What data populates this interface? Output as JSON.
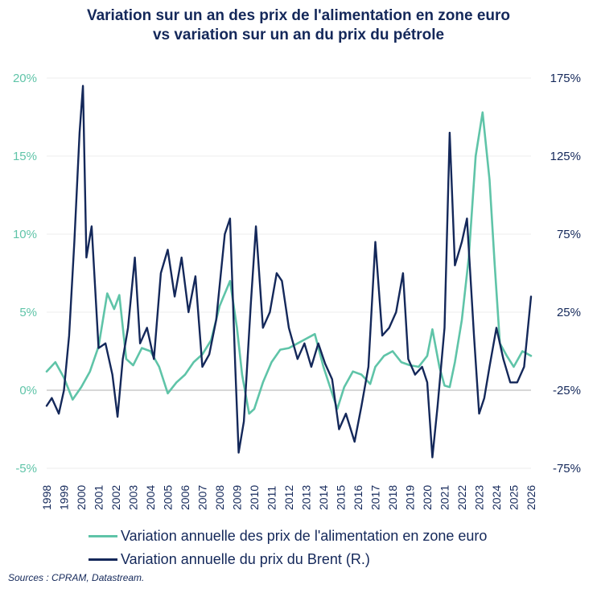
{
  "title_line1": "Variation sur un an des prix de l'alimentation en zone euro",
  "title_line2": "vs variation sur un an du prix du pétrole",
  "source": "Sources : CPRAM, Datastream.",
  "colors": {
    "food": "#5fc4a8",
    "oil": "#14285a",
    "zero": "#bfbfbf",
    "grid": "#ececec"
  },
  "chart_data": {
    "type": "line",
    "title": "Variation sur un an des prix de l'alimentation en zone euro vs variation sur un an du prix du pétrole",
    "legend_position": "bottom",
    "grid": "horizontal",
    "x_ticks": [
      "1998",
      "1999",
      "2000",
      "2001",
      "2002",
      "2003",
      "2004",
      "2005",
      "2006",
      "2007",
      "2008",
      "2009",
      "2010",
      "2011",
      "2012",
      "2013",
      "2014",
      "2015",
      "2016",
      "2017",
      "2018",
      "2019",
      "2020",
      "2021",
      "2022",
      "2023",
      "2024",
      "2025",
      "2026"
    ],
    "y_left": {
      "ticks": [
        "20%",
        "15%",
        "10%",
        "5%",
        "0%",
        "-5%"
      ],
      "values": [
        20,
        15,
        10,
        5,
        0,
        -5
      ],
      "ylim": [
        -5,
        20
      ],
      "unit": "%"
    },
    "y_right": {
      "ticks": [
        "175%",
        "125%",
        "75%",
        "25%",
        "-25%",
        "-75%"
      ],
      "values": [
        175,
        125,
        75,
        25,
        -25,
        -75
      ],
      "ylim": [
        -75,
        175
      ],
      "unit": "%"
    },
    "series": [
      {
        "name": "Variation annuelle des prix de l'alimentation en zone euro",
        "axis": "left",
        "points": [
          [
            1998.0,
            1.2
          ],
          [
            1998.5,
            1.8
          ],
          [
            1999.0,
            0.8
          ],
          [
            1999.5,
            -0.6
          ],
          [
            2000.0,
            0.2
          ],
          [
            2000.5,
            1.2
          ],
          [
            2001.0,
            2.8
          ],
          [
            2001.5,
            6.2
          ],
          [
            2001.9,
            5.2
          ],
          [
            2002.2,
            6.1
          ],
          [
            2002.6,
            2.0
          ],
          [
            2003.0,
            1.6
          ],
          [
            2003.5,
            2.7
          ],
          [
            2004.0,
            2.5
          ],
          [
            2004.5,
            1.5
          ],
          [
            2005.0,
            -0.2
          ],
          [
            2005.5,
            0.5
          ],
          [
            2006.0,
            1.0
          ],
          [
            2006.5,
            1.8
          ],
          [
            2007.0,
            2.3
          ],
          [
            2007.5,
            3.2
          ],
          [
            2008.0,
            5.4
          ],
          [
            2008.6,
            7.0
          ],
          [
            2009.0,
            4.0
          ],
          [
            2009.3,
            1.0
          ],
          [
            2009.7,
            -1.5
          ],
          [
            2010.0,
            -1.2
          ],
          [
            2010.5,
            0.5
          ],
          [
            2011.0,
            1.8
          ],
          [
            2011.5,
            2.6
          ],
          [
            2012.0,
            2.7
          ],
          [
            2012.5,
            3.0
          ],
          [
            2013.0,
            3.3
          ],
          [
            2013.5,
            3.6
          ],
          [
            2014.0,
            1.5
          ],
          [
            2014.5,
            -0.2
          ],
          [
            2014.8,
            -1.2
          ],
          [
            2015.2,
            0.2
          ],
          [
            2015.7,
            1.2
          ],
          [
            2016.2,
            1.0
          ],
          [
            2016.7,
            0.4
          ],
          [
            2017.0,
            1.5
          ],
          [
            2017.5,
            2.2
          ],
          [
            2018.0,
            2.5
          ],
          [
            2018.5,
            1.8
          ],
          [
            2019.0,
            1.6
          ],
          [
            2019.5,
            1.5
          ],
          [
            2020.0,
            2.2
          ],
          [
            2020.3,
            3.9
          ],
          [
            2020.7,
            1.5
          ],
          [
            2021.0,
            0.3
          ],
          [
            2021.3,
            0.2
          ],
          [
            2021.6,
            1.8
          ],
          [
            2022.0,
            4.5
          ],
          [
            2022.4,
            8.5
          ],
          [
            2022.8,
            15.0
          ],
          [
            2023.2,
            17.8
          ],
          [
            2023.6,
            13.5
          ],
          [
            2023.9,
            8.0
          ],
          [
            2024.2,
            3.0
          ],
          [
            2024.6,
            2.2
          ],
          [
            2025.0,
            1.5
          ],
          [
            2025.5,
            2.5
          ],
          [
            2026.0,
            2.2
          ]
        ]
      },
      {
        "name": "Variation annuelle du prix du Brent (R.)",
        "axis": "right",
        "points": [
          [
            1998.0,
            -35
          ],
          [
            1998.3,
            -30
          ],
          [
            1998.7,
            -40
          ],
          [
            1999.0,
            -25
          ],
          [
            1999.3,
            10
          ],
          [
            1999.6,
            70
          ],
          [
            1999.9,
            140
          ],
          [
            2000.1,
            170
          ],
          [
            2000.3,
            60
          ],
          [
            2000.6,
            80
          ],
          [
            2001.0,
            2
          ],
          [
            2001.4,
            5
          ],
          [
            2001.8,
            -15
          ],
          [
            2002.1,
            -42
          ],
          [
            2002.4,
            -5
          ],
          [
            2002.7,
            15
          ],
          [
            2003.1,
            60
          ],
          [
            2003.4,
            5
          ],
          [
            2003.8,
            15
          ],
          [
            2004.2,
            -5
          ],
          [
            2004.6,
            50
          ],
          [
            2005.0,
            65
          ],
          [
            2005.4,
            35
          ],
          [
            2005.8,
            60
          ],
          [
            2006.2,
            25
          ],
          [
            2006.6,
            48
          ],
          [
            2007.0,
            -10
          ],
          [
            2007.4,
            -2
          ],
          [
            2007.8,
            20
          ],
          [
            2008.3,
            75
          ],
          [
            2008.6,
            85
          ],
          [
            2008.9,
            -10
          ],
          [
            2009.1,
            -65
          ],
          [
            2009.4,
            -45
          ],
          [
            2009.8,
            30
          ],
          [
            2010.1,
            80
          ],
          [
            2010.5,
            15
          ],
          [
            2010.9,
            25
          ],
          [
            2011.3,
            50
          ],
          [
            2011.6,
            45
          ],
          [
            2012.0,
            15
          ],
          [
            2012.5,
            -5
          ],
          [
            2012.9,
            5
          ],
          [
            2013.3,
            -10
          ],
          [
            2013.7,
            5
          ],
          [
            2014.1,
            -8
          ],
          [
            2014.5,
            -18
          ],
          [
            2014.9,
            -50
          ],
          [
            2015.3,
            -40
          ],
          [
            2015.8,
            -58
          ],
          [
            2016.2,
            -35
          ],
          [
            2016.6,
            -10
          ],
          [
            2017.0,
            70
          ],
          [
            2017.4,
            10
          ],
          [
            2017.8,
            15
          ],
          [
            2018.2,
            25
          ],
          [
            2018.6,
            50
          ],
          [
            2018.9,
            -5
          ],
          [
            2019.3,
            -15
          ],
          [
            2019.7,
            -10
          ],
          [
            2020.0,
            -20
          ],
          [
            2020.3,
            -68
          ],
          [
            2020.6,
            -35
          ],
          [
            2021.0,
            15
          ],
          [
            2021.3,
            140
          ],
          [
            2021.6,
            55
          ],
          [
            2022.0,
            70
          ],
          [
            2022.3,
            85
          ],
          [
            2022.7,
            10
          ],
          [
            2023.0,
            -40
          ],
          [
            2023.3,
            -30
          ],
          [
            2023.6,
            -10
          ],
          [
            2024.0,
            15
          ],
          [
            2024.4,
            -5
          ],
          [
            2024.8,
            -20
          ],
          [
            2025.2,
            -20
          ],
          [
            2025.6,
            -10
          ],
          [
            2026.0,
            35
          ]
        ]
      }
    ]
  }
}
